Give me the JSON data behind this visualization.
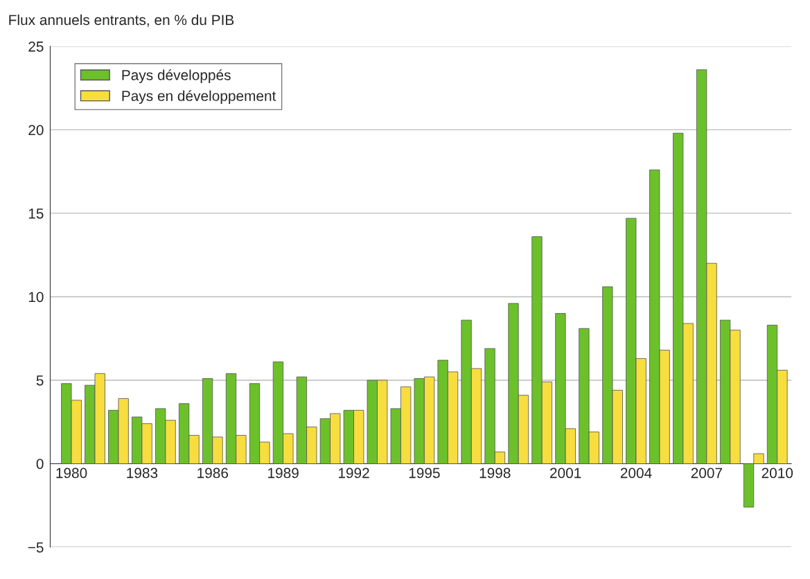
{
  "chart_data": {
    "type": "bar",
    "ylabel": "Flux annuels entrants, en % du PIB",
    "categories": [
      "1980",
      null,
      null,
      "1983",
      null,
      null,
      "1986",
      null,
      null,
      "1989",
      null,
      null,
      "1992",
      null,
      null,
      "1995",
      null,
      null,
      "1998",
      null,
      null,
      "2001",
      null,
      null,
      "2004",
      null,
      null,
      "2007",
      null,
      null,
      "2010"
    ],
    "series": [
      {
        "name": "Pays développés",
        "color": "#6cc12a",
        "values": [
          4.8,
          4.7,
          3.2,
          2.8,
          3.3,
          3.6,
          5.1,
          5.4,
          4.8,
          6.1,
          5.2,
          2.7,
          3.2,
          5.0,
          3.3,
          5.1,
          6.2,
          8.6,
          6.9,
          9.6,
          13.6,
          9.0,
          8.1,
          10.6,
          14.7,
          17.6,
          19.8,
          23.6,
          8.6,
          -2.6,
          8.3
        ]
      },
      {
        "name": "Pays en développement",
        "color": "#f7de3e",
        "values": [
          3.8,
          5.4,
          3.9,
          2.4,
          2.6,
          1.7,
          1.6,
          1.7,
          1.3,
          1.8,
          2.2,
          3.0,
          3.2,
          5.0,
          4.6,
          5.2,
          5.5,
          5.7,
          0.7,
          4.1,
          4.9,
          2.1,
          1.9,
          4.4,
          6.3,
          6.8,
          8.4,
          12.0,
          8.0,
          0.6,
          5.6
        ]
      }
    ],
    "ylim": [
      -5,
      25
    ],
    "yticks": [
      -5,
      0,
      5,
      10,
      15,
      20,
      25
    ],
    "grid": "y",
    "legend": "top left"
  }
}
